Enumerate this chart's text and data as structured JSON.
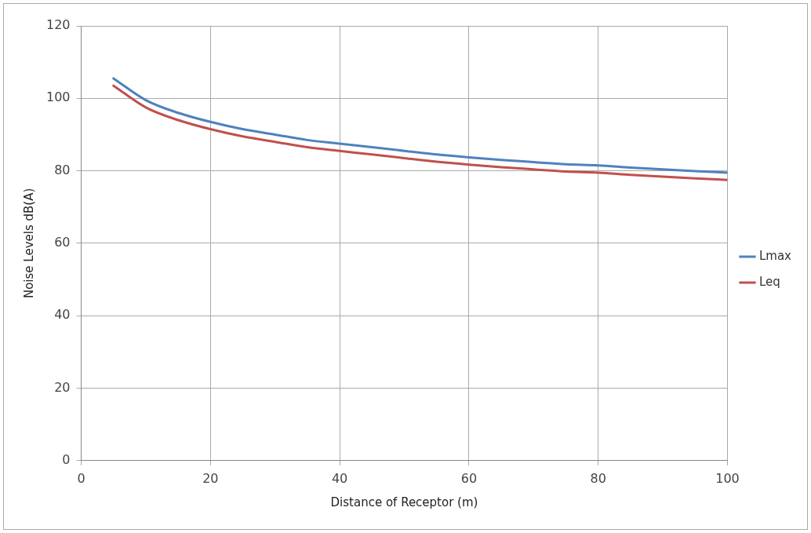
{
  "chart_data": {
    "type": "line",
    "xlabel": "Distance of Receptor (m)",
    "ylabel": "Noise Levels dB(A)",
    "x": [
      5,
      10,
      15,
      20,
      25,
      30,
      35,
      40,
      45,
      50,
      55,
      60,
      65,
      70,
      75,
      80,
      85,
      90,
      95,
      100
    ],
    "series": [
      {
        "name": "Lmax",
        "color": "#4f81bd",
        "values": [
          105.5,
          99.5,
          96,
          93.5,
          91.5,
          90,
          88.5,
          87.5,
          86.5,
          85.5,
          84.5,
          83.7,
          83,
          82.4,
          81.8,
          81.5,
          80.9,
          80.4,
          79.9,
          79.5
        ]
      },
      {
        "name": "Leq",
        "color": "#c0504d",
        "values": [
          103.5,
          97.5,
          94,
          91.5,
          89.5,
          88,
          86.5,
          85.5,
          84.5,
          83.5,
          82.5,
          81.7,
          81,
          80.4,
          79.8,
          79.5,
          78.9,
          78.4,
          77.9,
          77.5
        ]
      }
    ],
    "xlim": [
      0,
      100
    ],
    "xticks": [
      0,
      20,
      40,
      60,
      80,
      100
    ],
    "ylim": [
      0,
      120
    ],
    "yticks": [
      0,
      20,
      40,
      60,
      80,
      100,
      120
    ],
    "grid": true,
    "legend": "right",
    "marker": "none",
    "line_style": "solid"
  }
}
